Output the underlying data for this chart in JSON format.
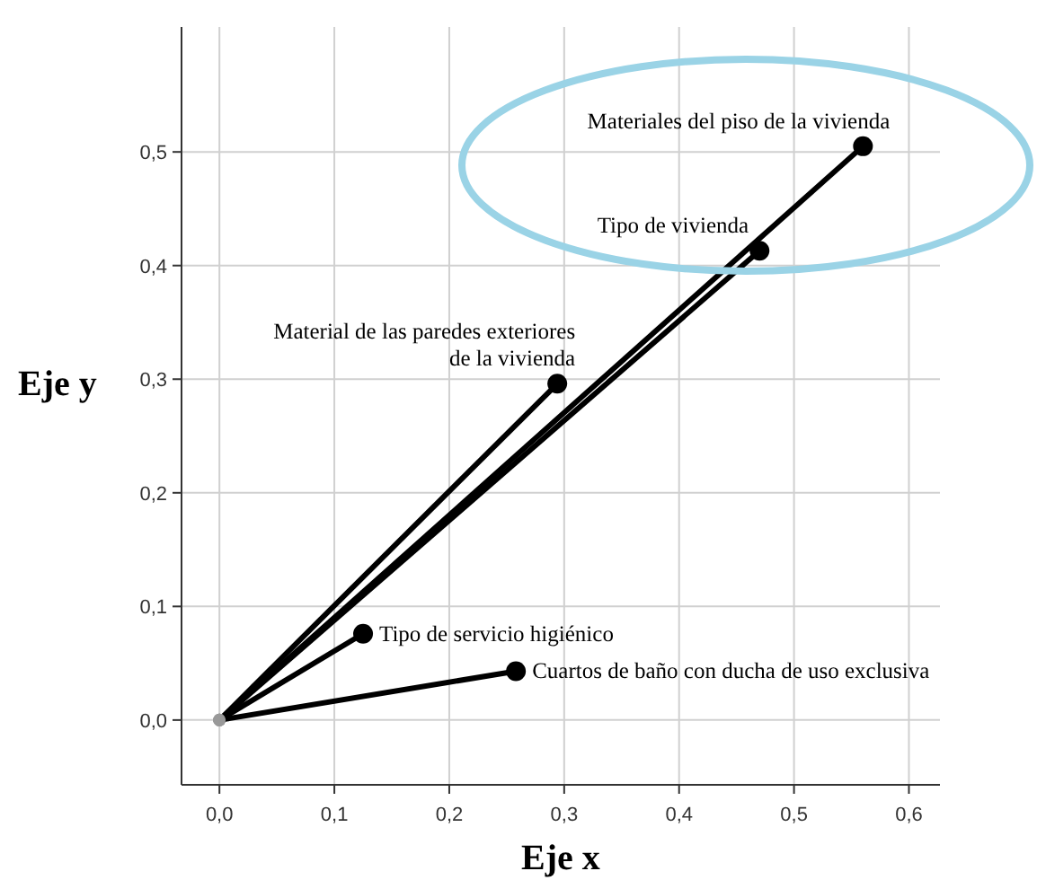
{
  "chart_data": {
    "type": "line",
    "xlabel": "Eje x",
    "ylabel": "Eje y",
    "xlim": [
      -0.033,
      0.627
    ],
    "ylim": [
      -0.057,
      0.61
    ],
    "xticks": [
      {
        "value": 0,
        "label": "0,0"
      },
      {
        "value": 0.1,
        "label": "0,1"
      },
      {
        "value": 0.2,
        "label": "0,2"
      },
      {
        "value": 0.3,
        "label": "0,3"
      },
      {
        "value": 0.4,
        "label": "0,4"
      },
      {
        "value": 0.5,
        "label": "0,5"
      },
      {
        "value": 0.6,
        "label": "0,6"
      }
    ],
    "yticks": [
      {
        "value": 0,
        "label": "0,0"
      },
      {
        "value": 0.1,
        "label": "0,1"
      },
      {
        "value": 0.2,
        "label": "0,2"
      },
      {
        "value": 0.3,
        "label": "0,3"
      },
      {
        "value": 0.4,
        "label": "0,4"
      },
      {
        "value": 0.5,
        "label": "0,5"
      }
    ],
    "grid": true,
    "marker": "circle",
    "series": [
      {
        "name": "Materiales del piso de la vivienda",
        "color": "#000000",
        "x": [
          0,
          0.56
        ],
        "values": [
          0,
          0.505
        ]
      },
      {
        "name": "Tipo de vivienda",
        "color": "#000000",
        "x": [
          0,
          0.47
        ],
        "values": [
          0,
          0.413
        ]
      },
      {
        "name": "Material de las paredes exteriores de la vivienda",
        "color": "#000000",
        "x": [
          0,
          0.294
        ],
        "values": [
          0,
          0.296
        ]
      },
      {
        "name": "Tipo de servicio higiénico",
        "color": "#000000",
        "x": [
          0,
          0.125
        ],
        "values": [
          0,
          0.076
        ]
      },
      {
        "name": "Cuartos de baño con ducha de uso exclusiva",
        "color": "#000000",
        "x": [
          0,
          0.258
        ],
        "values": [
          0,
          0.043
        ]
      }
    ]
  }
}
